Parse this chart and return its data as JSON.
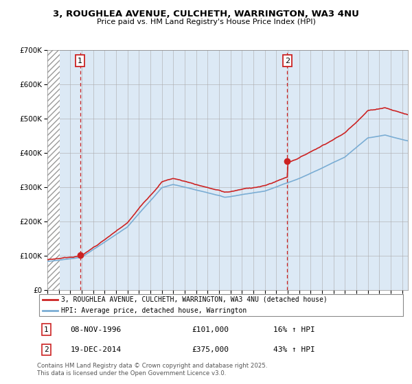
{
  "title": "3, ROUGHLEA AVENUE, CULCHETH, WARRINGTON, WA3 4NU",
  "subtitle": "Price paid vs. HM Land Registry's House Price Index (HPI)",
  "legend_line1": "3, ROUGHLEA AVENUE, CULCHETH, WARRINGTON, WA3 4NU (detached house)",
  "legend_line2": "HPI: Average price, detached house, Warrington",
  "annotation1_label": "1",
  "annotation1_date": "08-NOV-1996",
  "annotation1_price": "£101,000",
  "annotation1_hpi": "16% ↑ HPI",
  "annotation2_label": "2",
  "annotation2_date": "19-DEC-2014",
  "annotation2_price": "£375,000",
  "annotation2_hpi": "43% ↑ HPI",
  "footer": "Contains HM Land Registry data © Crown copyright and database right 2025.\nThis data is licensed under the Open Government Licence v3.0.",
  "sale1_year": 1996.86,
  "sale1_value": 101000,
  "sale2_year": 2014.96,
  "sale2_value": 375000,
  "hpi_line_color": "#7aadd4",
  "price_line_color": "#cc2222",
  "sale_dot_color": "#cc2222",
  "dashed_line_color": "#cc2222",
  "chart_bg_color": "#dce9f5",
  "hatch_color": "#c0c0c0",
  "ylim_max": 700000,
  "xmin": 1994.0,
  "xmax": 2025.5,
  "grid_color": "#aaaaaa",
  "fig_bg": "#ffffff"
}
